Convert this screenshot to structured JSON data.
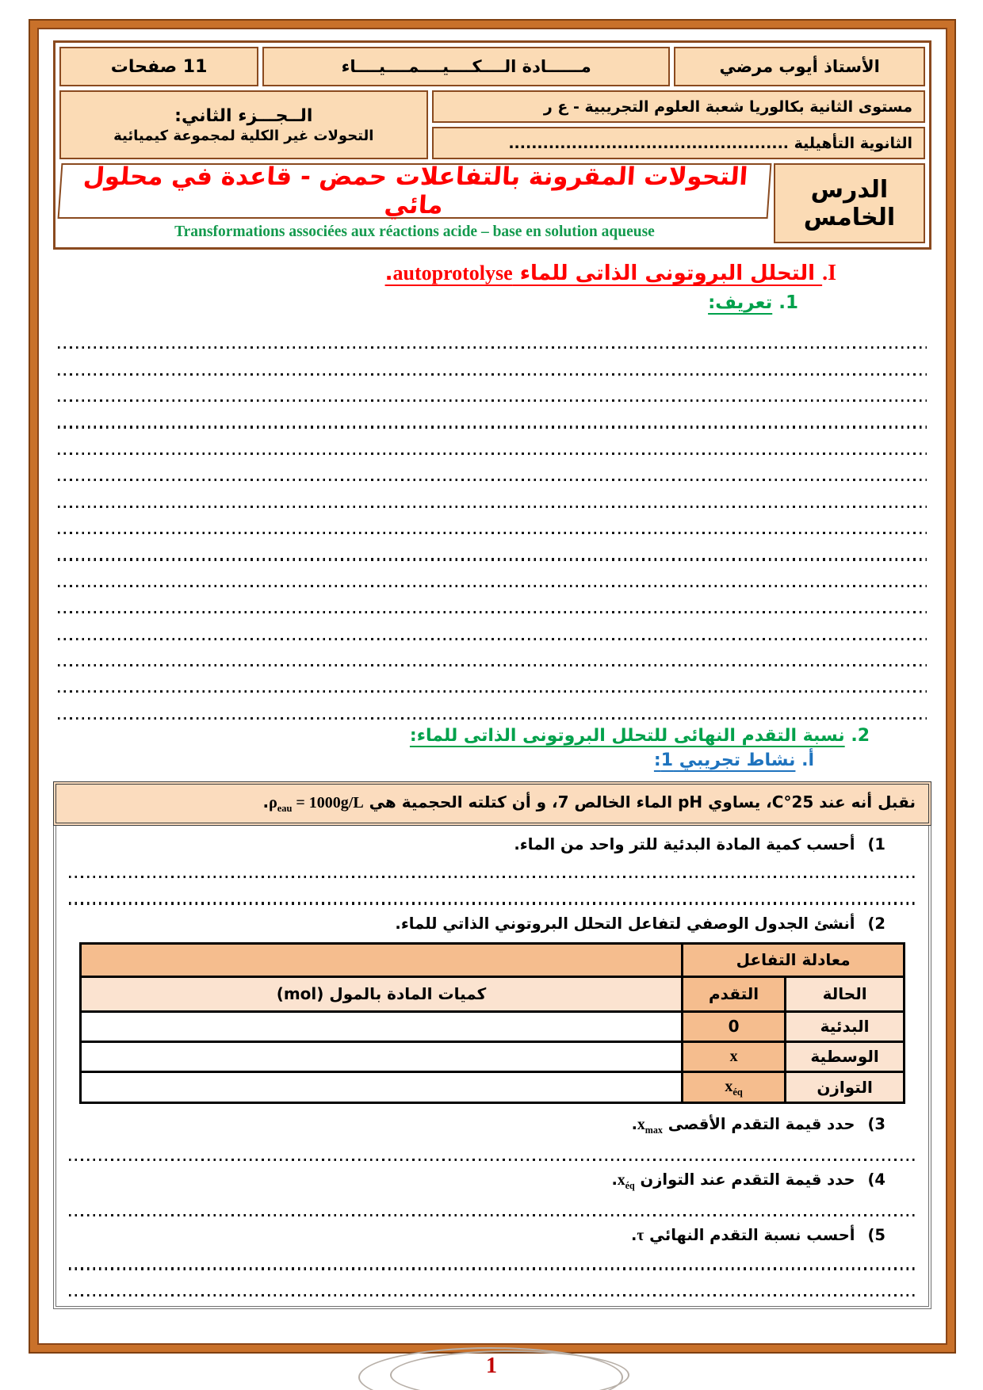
{
  "colors": {
    "title_red": "#FF0000",
    "heading_green": "#00A14B",
    "activity_blue": "#1E73BE",
    "border_brown": "#8A4A1F",
    "header_cell_peach": "#FBDBB5",
    "table_orange": "#F5BD8E",
    "table_light_peach": "#FBE3D0",
    "statement_bg": "#FBDCBE",
    "page_number_red": "#C00000"
  },
  "header": {
    "teacher": "الأستاذ أيوب مرضي",
    "subject": "مــــــادة الــــكــــيــــمــــيــــاء",
    "pages": "11 صفحات",
    "level": "مستوى الثانية بكالوريا شعبة العلوم التجريبية - ع ر",
    "school": "الثانوية التأهيلية .................................................",
    "part_title": "الــجـــزء الثاني:",
    "part_subtitle": "التحولات غير الكلية لمجموعة كيميائية",
    "lesson": "الدرس الخامس",
    "title_ar": "التحولات المقرونة بالتفاعلات حمض - قاعدة في محلول مائي",
    "title_fr": "Transformations associées aux réactions acide – base en solution aqueuse"
  },
  "section1": {
    "numeral": "I.",
    "title_ar": " التحلل البروتونى الذاتى للماء ",
    "title_latin": "autoprotolyse",
    "period": ".",
    "sub_num": "1. ",
    "sub_title": "تعريف:"
  },
  "section2": {
    "num": "2. ",
    "title": "نسبة التقدم النهائى للتحلل البروتونى الذاتى للماء:",
    "sub_letter": "أ.   ",
    "sub_title": "نشاط تجريبي 1:"
  },
  "activity": {
    "statement": {
      "part1": "نقبل أنه عند 25°C، يساوي pH الماء الخالص 7، و أن كتلته الحجمية هي ",
      "rho": "ρ",
      "rho_sub": "eau",
      "rho_value": " = 1000g/L",
      "period": "."
    },
    "questions": {
      "q1": {
        "num": "1)",
        "text": "أحسب كمية المادة البدئية للتر واحد من الماء."
      },
      "q2": {
        "num": "2)",
        "text": "أنشئ الجدول الوصفي لتفاعل التحلل البروتوني الذاتي للماء."
      },
      "q3": {
        "num": "3)",
        "text": "حدد قيمة التقدم الأقصى ",
        "sym": "x",
        "sym_sub": "max",
        "period": "."
      },
      "q4": {
        "num": "4)",
        "text": "حدد قيمة التقدم عند التوازن ",
        "sym": "x",
        "sym_sub": "éq",
        "period": "."
      },
      "q5": {
        "num": "5)",
        "text": "أحسب نسبة التقدم النهائي ",
        "sym": "τ",
        "period": "."
      }
    },
    "table": {
      "equation_header": "معادلة التفاعل",
      "col_state": "الحالة",
      "col_progress": "التقدم",
      "col_amounts": "كميات المادة بالمول (mol)",
      "rows": [
        {
          "state": "البدئية",
          "progress": "0"
        },
        {
          "state": "الوسطية",
          "progress": "x"
        },
        {
          "state": "التوازن",
          "progress_sym": "x",
          "progress_sub": "éq"
        }
      ]
    }
  },
  "footer": {
    "page_number": "1"
  }
}
